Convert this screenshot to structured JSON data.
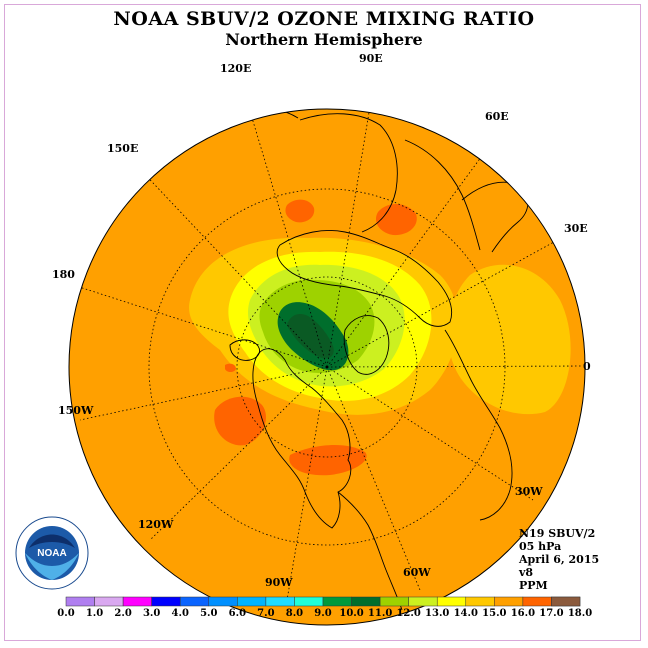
{
  "header": {
    "title": "NOAA SBUV/2 OZONE MIXING RATIO",
    "subtitle": "Northern Hemisphere"
  },
  "longitude_labels": [
    "120E",
    "90E",
    "60E",
    "150E",
    "30E",
    "180",
    "0",
    "150W",
    "30W",
    "120W",
    "60W",
    "90W"
  ],
  "info": {
    "satellite": "N19 SBUV/2",
    "level": "05 hPa",
    "date": "April 6, 2015",
    "version": "v8",
    "units": "PPM"
  },
  "colorbar": {
    "labels": [
      "0.0",
      "1.0",
      "2.0",
      "3.0",
      "4.0",
      "5.0",
      "6.0",
      "7.0",
      "8.0",
      "9.0",
      "10.0",
      "11.0",
      "12.0",
      "13.0",
      "14.0",
      "15.0",
      "16.0",
      "17.0",
      "18.0"
    ],
    "colors": [
      "#b07ff0",
      "#d9a8f0",
      "#ff00ff",
      "#0000ff",
      "#0a64ff",
      "#0090ff",
      "#00b4ff",
      "#20dcff",
      "#20ffd8",
      "#009a3c",
      "#006e2c",
      "#9ed200",
      "#ccf020",
      "#ffff00",
      "#ffc800",
      "#ffa000",
      "#ff6400",
      "#ff0000",
      "#8b5a3c"
    ]
  },
  "logo": {
    "text": "NOAA"
  },
  "chart_data": {
    "type": "heatmap",
    "title": "NOAA SBUV/2 OZONE MIXING RATIO",
    "subtitle": "Northern Hemisphere",
    "projection": "north polar stereographic",
    "units": "PPM",
    "pressure_level": "05 hPa",
    "date": "April 6, 2015",
    "scale_range": [
      0.0,
      18.0
    ],
    "scale_step": 1.0,
    "field_summary": [
      {
        "region": "polar core (Arctic, near Greenland/Canada)",
        "range": [
          9.0,
          10.0
        ]
      },
      {
        "region": "surrounding polar ring",
        "range": [
          10.0,
          13.0
        ]
      },
      {
        "region": "mid latitudes",
        "range": [
          14.0,
          15.0
        ]
      },
      {
        "region": "patches over western USA, southeastern USA, Siberia",
        "range": [
          15.0,
          16.0
        ]
      },
      {
        "region": "North Atlantic / western Europe",
        "range": [
          13.0,
          14.0
        ]
      }
    ]
  }
}
